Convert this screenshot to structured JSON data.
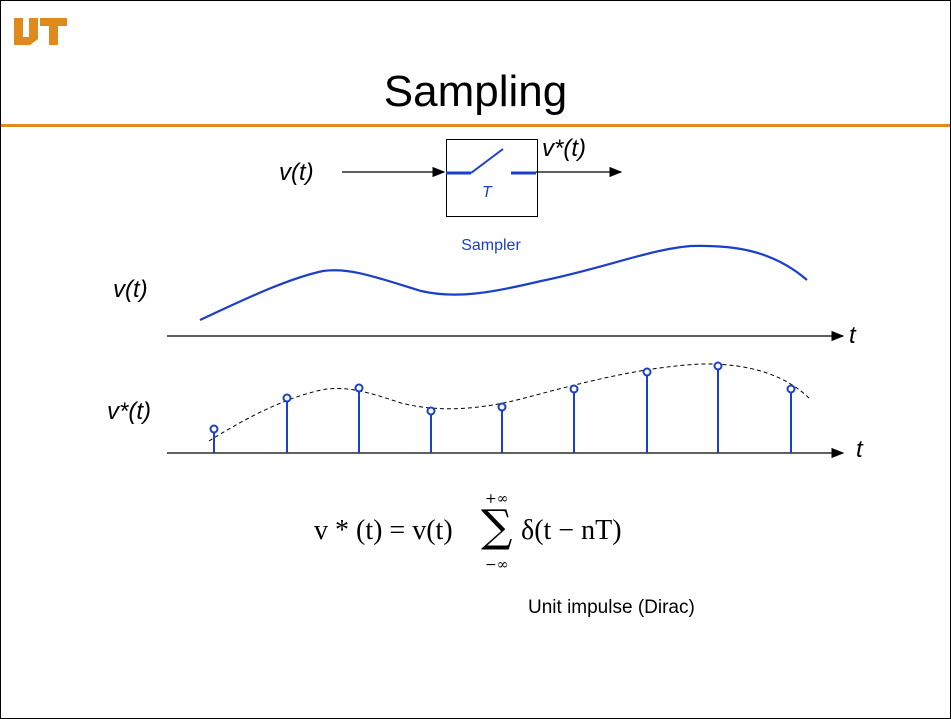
{
  "slide": {
    "title": "Sampling",
    "colors": {
      "accent_rule": "#e08a1e",
      "logo": "#e08a1e",
      "signal": "#1a3fc8",
      "text": "#000000"
    },
    "logo_icon": "ut-logo-icon"
  },
  "sampler": {
    "input_label": "v(t)",
    "output_label": "v*(t)",
    "period_label": "T",
    "caption": "Sampler",
    "switch_icon": "switch-icon"
  },
  "signal_plot": {
    "y_label": "v(t)",
    "x_label": "t"
  },
  "sampled_plot": {
    "y_label": "v*(t)",
    "x_label": "t",
    "sample_count": 9
  },
  "formula": {
    "lhs": "v * (t) = v(t)",
    "sum_symbol": "∑",
    "upper_limit": "+∞",
    "lower_limit": "−∞",
    "rhs": "δ(t − nT)"
  },
  "note": "Unit impulse (Dirac)"
}
